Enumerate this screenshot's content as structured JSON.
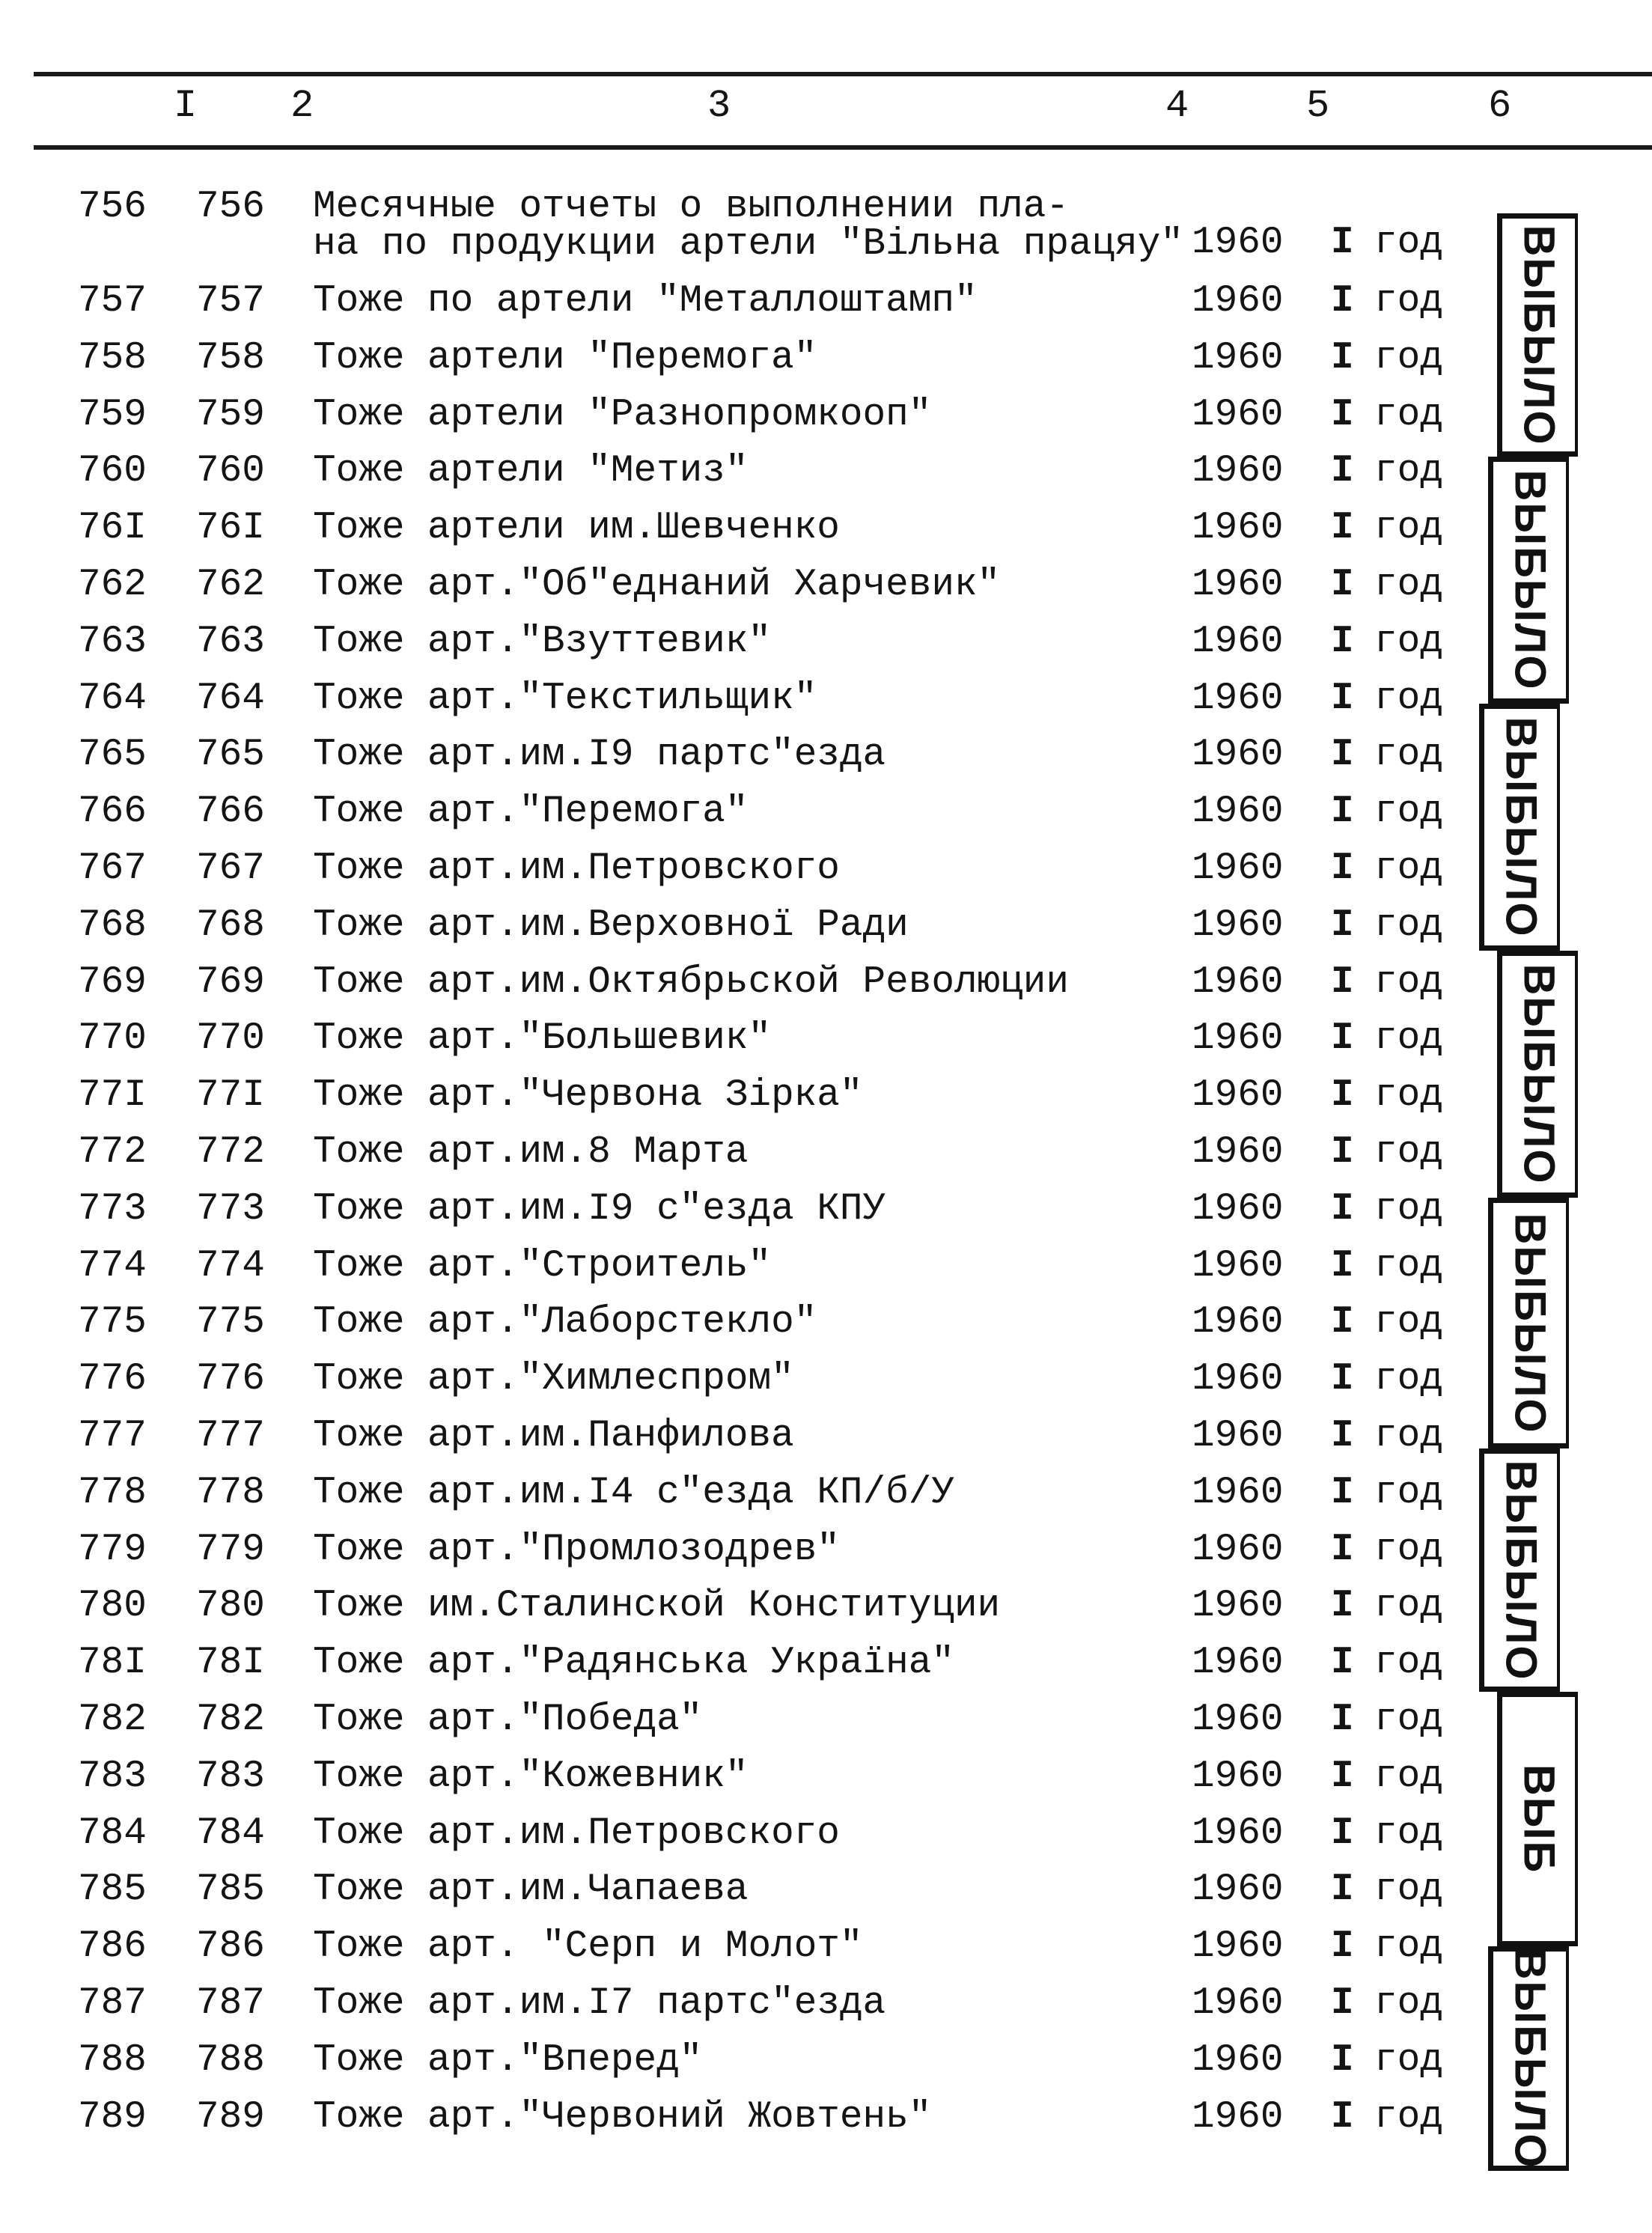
{
  "header": {
    "columns": [
      "I",
      "2",
      "3",
      "4",
      "5",
      "6"
    ]
  },
  "rows": [
    {
      "n1": "756",
      "n2": "756",
      "title": "Месячные отчеты о выполнении пла-\nна по продукции артели \"Вiльна працяу\"",
      "year": "1960",
      "count": "I",
      "unit": "год"
    },
    {
      "n1": "757",
      "n2": "757",
      "title": "Тоже по артели \"Металлоштамп\"",
      "year": "1960",
      "count": "I",
      "unit": "год"
    },
    {
      "n1": "758",
      "n2": "758",
      "title": "Тоже артели \"Перемога\"",
      "year": "1960",
      "count": "I",
      "unit": "год"
    },
    {
      "n1": "759",
      "n2": "759",
      "title": "Тоже артели \"Разнопромкооп\"",
      "year": "1960",
      "count": "I",
      "unit": "год"
    },
    {
      "n1": "760",
      "n2": "760",
      "title": "Тоже артели \"Метиз\"",
      "year": "1960",
      "count": "I",
      "unit": "год"
    },
    {
      "n1": "76I",
      "n2": "76I",
      "title": "Тоже артели им.Шевченко",
      "year": "1960",
      "count": "I",
      "unit": "год"
    },
    {
      "n1": "762",
      "n2": "762",
      "title": "Тоже арт.\"Об\"еднаний Харчевик\"",
      "year": "1960",
      "count": "I",
      "unit": "год"
    },
    {
      "n1": "763",
      "n2": "763",
      "title": "Тоже арт.\"Взуттевик\"",
      "year": "1960",
      "count": "I",
      "unit": "год"
    },
    {
      "n1": "764",
      "n2": "764",
      "title": "Тоже арт.\"Текстильщик\"",
      "year": "1960",
      "count": "I",
      "unit": "год"
    },
    {
      "n1": "765",
      "n2": "765",
      "title": "Тоже арт.им.I9 партс\"езда",
      "year": "1960",
      "count": "I",
      "unit": "год"
    },
    {
      "n1": "766",
      "n2": "766",
      "title": "Тоже арт.\"Перемога\"",
      "year": "1960",
      "count": "I",
      "unit": "год"
    },
    {
      "n1": "767",
      "n2": "767",
      "title": "Тоже арт.им.Петровского",
      "year": "1960",
      "count": "I",
      "unit": "год"
    },
    {
      "n1": "768",
      "n2": "768",
      "title": "Тоже арт.им.Верховноï Ради",
      "year": "1960",
      "count": "I",
      "unit": "год"
    },
    {
      "n1": "769",
      "n2": "769",
      "title": "Тоже арт.им.Октябрьской Революции",
      "year": "1960",
      "count": "I",
      "unit": "год"
    },
    {
      "n1": "770",
      "n2": "770",
      "title": "Тоже арт.\"Большевик\"",
      "year": "1960",
      "count": "I",
      "unit": "год"
    },
    {
      "n1": "77I",
      "n2": "77I",
      "title": "Тоже арт.\"Червона Зiрка\"",
      "year": "1960",
      "count": "I",
      "unit": "год"
    },
    {
      "n1": "772",
      "n2": "772",
      "title": "Тоже арт.им.8 Марта",
      "year": "1960",
      "count": "I",
      "unit": "год"
    },
    {
      "n1": "773",
      "n2": "773",
      "title": "Тоже арт.им.I9 с\"езда КПУ",
      "year": "1960",
      "count": "I",
      "unit": "год"
    },
    {
      "n1": "774",
      "n2": "774",
      "title": "Тоже арт.\"Строитель\"",
      "year": "1960",
      "count": "I",
      "unit": "год"
    },
    {
      "n1": "775",
      "n2": "775",
      "title": "Тоже арт.\"Лаборстекло\"",
      "year": "1960",
      "count": "I",
      "unit": "год"
    },
    {
      "n1": "776",
      "n2": "776",
      "title": "Тоже арт.\"Химлеспром\"",
      "year": "1960",
      "count": "I",
      "unit": "год"
    },
    {
      "n1": "777",
      "n2": "777",
      "title": "Тоже арт.им.Панфилова",
      "year": "1960",
      "count": "I",
      "unit": "год"
    },
    {
      "n1": "778",
      "n2": "778",
      "title": "Тоже арт.им.I4 с\"езда КП/б/У",
      "year": "1960",
      "count": "I",
      "unit": "год"
    },
    {
      "n1": "779",
      "n2": "779",
      "title": "Тоже арт.\"Промлозодрев\"",
      "year": "1960",
      "count": "I",
      "unit": "год"
    },
    {
      "n1": "780",
      "n2": "780",
      "title": "Тоже им.Сталинской Конституции",
      "year": "1960",
      "count": "I",
      "unit": "год"
    },
    {
      "n1": "78I",
      "n2": "78I",
      "title": "Тоже арт.\"Радянська Украïна\"",
      "year": "1960",
      "count": "I",
      "unit": "год"
    },
    {
      "n1": "782",
      "n2": "782",
      "title": "Тоже арт.\"Победа\"",
      "year": "1960",
      "count": "I",
      "unit": "год"
    },
    {
      "n1": "783",
      "n2": "783",
      "title": "Тоже арт.\"Кожевник\"",
      "year": "1960",
      "count": "I",
      "unit": "год"
    },
    {
      "n1": "784",
      "n2": "784",
      "title": "Тоже арт.им.Петровского",
      "year": "1960",
      "count": "I",
      "unit": "год"
    },
    {
      "n1": "785",
      "n2": "785",
      "title": "Тоже арт.им.Чапаева",
      "year": "1960",
      "count": "I",
      "unit": "год"
    },
    {
      "n1": "786",
      "n2": "786",
      "title": "Тоже арт. \"Серп и Молот\"",
      "year": "1960",
      "count": "I",
      "unit": "год"
    },
    {
      "n1": "787",
      "n2": "787",
      "title": "Тоже арт.им.I7 партс\"езда",
      "year": "1960",
      "count": "I",
      "unit": "год"
    },
    {
      "n1": "788",
      "n2": "788",
      "title": "Тоже арт.\"Вперед\"",
      "year": "1960",
      "count": "I",
      "unit": "год"
    },
    {
      "n1": "789",
      "n2": "789",
      "title": "Тоже арт.\"Червоний Жовтень\"",
      "year": "1960",
      "count": "I",
      "unit": "год"
    }
  ],
  "stamps": [
    "ВЫБЫЛО",
    "ВЫБЫЛО",
    "ВЫБЫЛО",
    "ВЫБЫЛО",
    "ВЫБЫЛО",
    "ВЫБЫЛО",
    "ВЫБ",
    "ВЫБЫЛО"
  ]
}
